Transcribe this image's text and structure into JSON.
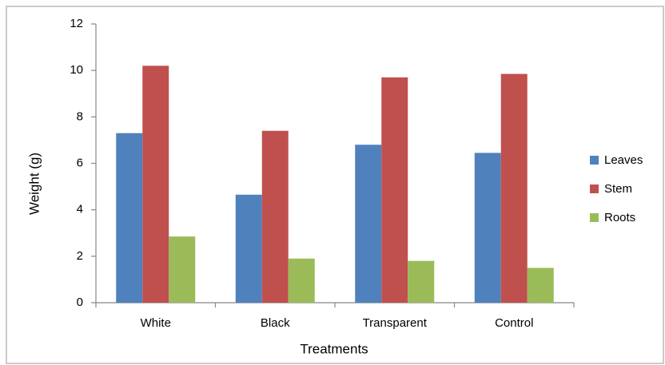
{
  "chart_data": {
    "type": "bar",
    "x_label": "Treatments",
    "y_label": "Weight (g)",
    "categories": [
      "White",
      "Black",
      "Transparent",
      "Control"
    ],
    "series": [
      {
        "name": "Leaves",
        "color": "#4f81bd",
        "values": [
          7.3,
          4.65,
          6.8,
          6.45
        ]
      },
      {
        "name": "Stem",
        "color": "#c0504d",
        "values": [
          10.2,
          7.4,
          9.7,
          9.85
        ]
      },
      {
        "name": "Roots",
        "color": "#9bbb59",
        "values": [
          2.85,
          1.9,
          1.8,
          1.5
        ]
      }
    ],
    "ylim": [
      0,
      12
    ],
    "yticks": [
      0,
      2,
      4,
      6,
      8,
      10,
      12
    ],
    "grid": false,
    "legend": "right"
  }
}
